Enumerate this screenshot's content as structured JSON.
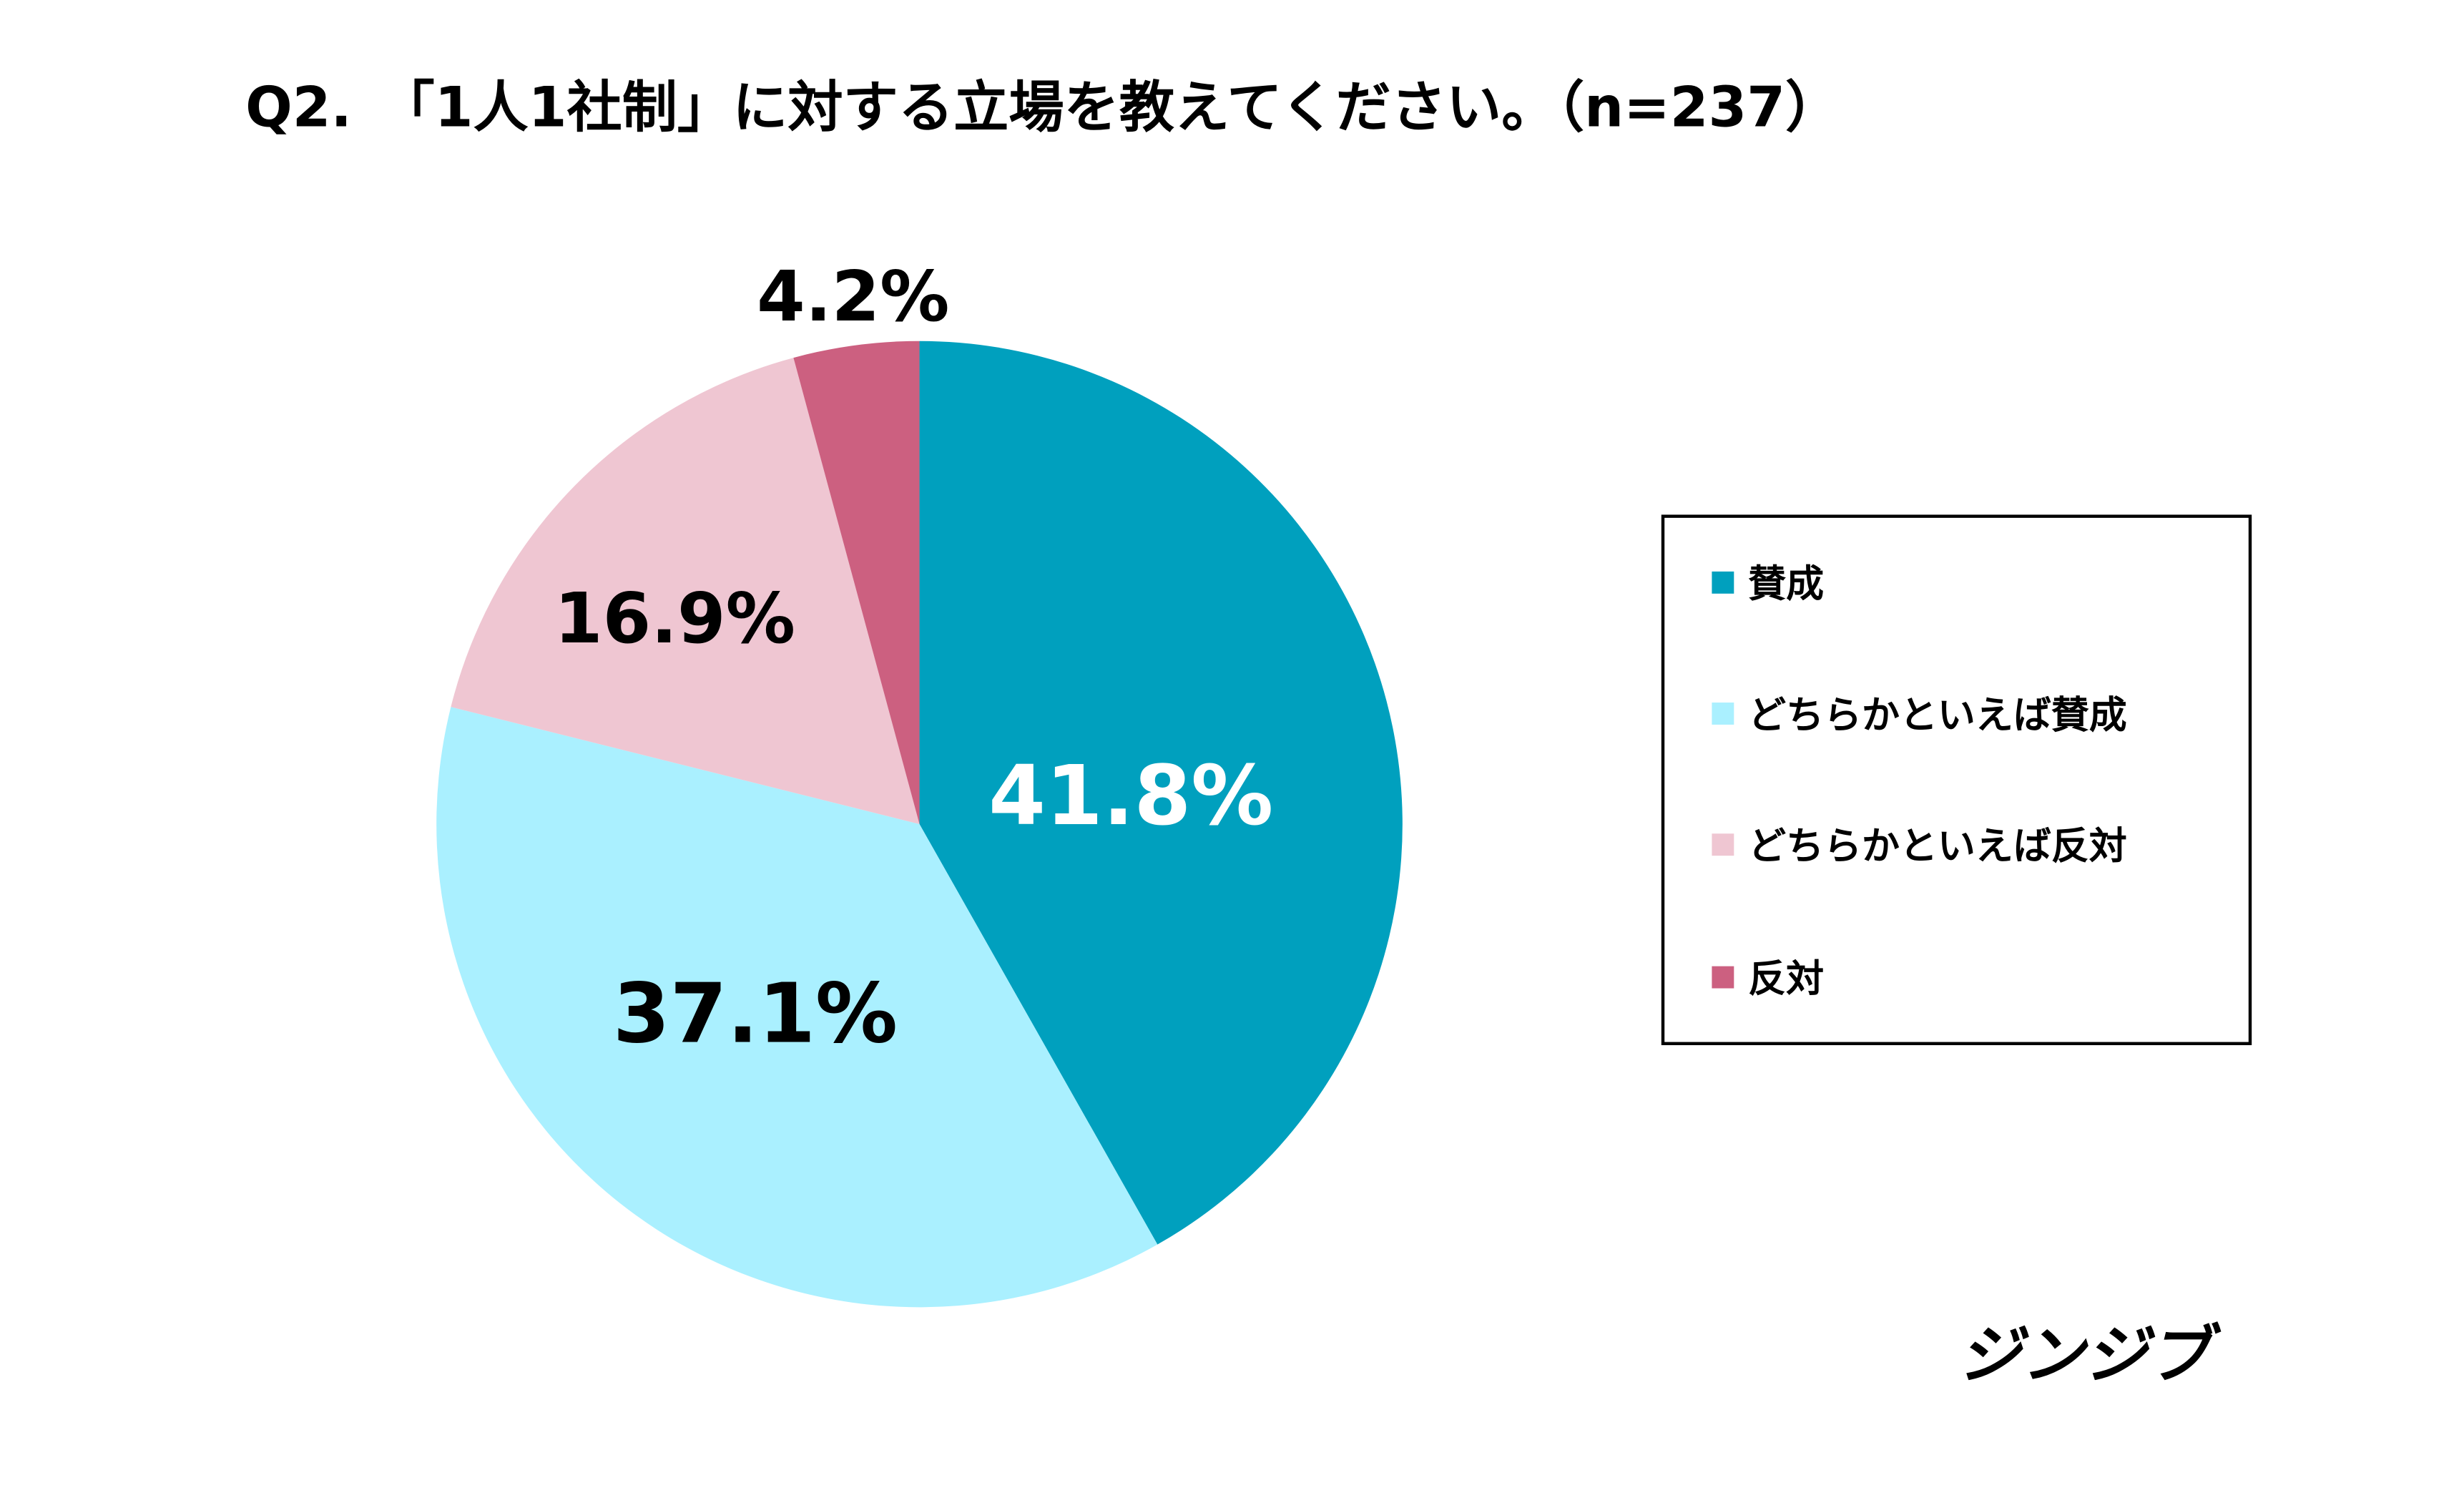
{
  "chart_data": {
    "type": "pie",
    "title": "Q2.　「1人1社制」に対する立場を教えてください。（n=237）",
    "categories": [
      "賛成",
      "どちらかといえば賛成",
      "どちらかといえば反対",
      "反対"
    ],
    "values": [
      41.8,
      37.1,
      16.9,
      4.2
    ],
    "data_labels": [
      "41.8%",
      "37.1%",
      "16.9%",
      "4.2%"
    ],
    "colors": [
      "#00A0BE",
      "#AAF0FF",
      "#EFC6D2",
      "#CC6080"
    ],
    "start_angle": "12 o'clock",
    "direction": "clockwise",
    "legend_placement": "right"
  },
  "logo": "ジンジブ"
}
